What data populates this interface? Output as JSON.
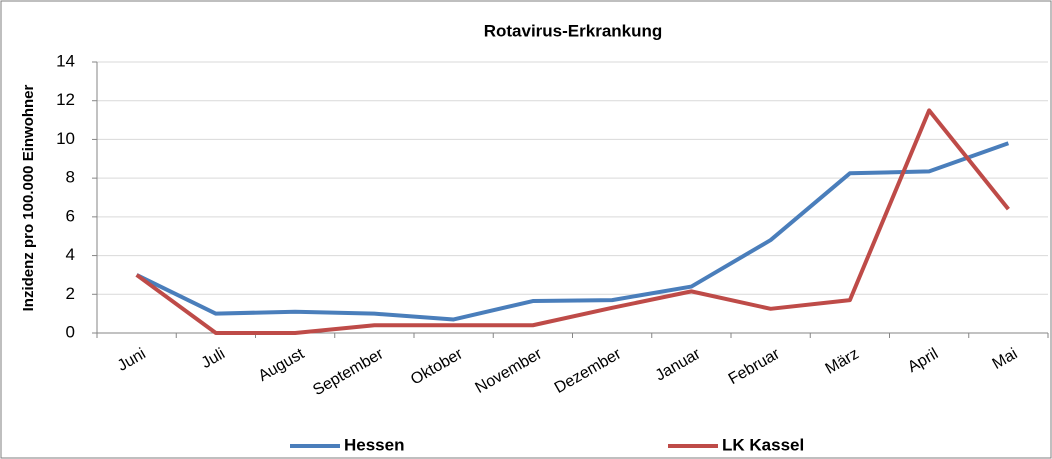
{
  "chart_data": {
    "type": "line",
    "title": "Rotavirus-Erkrankung",
    "y_label": "Inzidenz pro 100.000 Einwohner",
    "categories": [
      "Juni",
      "Juli",
      "August",
      "September",
      "Oktober",
      "November",
      "Dezember",
      "Januar",
      "Februar",
      "März",
      "April",
      "Mai"
    ],
    "series": [
      {
        "name": "Hessen",
        "color": "#4a7ebb",
        "values": [
          3.0,
          1.0,
          1.1,
          1.0,
          0.7,
          1.65,
          1.7,
          2.4,
          4.8,
          8.25,
          8.35,
          9.8
        ]
      },
      {
        "name": "LK Kassel",
        "color": "#be4b48",
        "values": [
          3.0,
          0,
          0,
          0.4,
          0.4,
          0.4,
          1.3,
          2.15,
          1.25,
          1.7,
          11.5,
          6.4
        ]
      }
    ],
    "ylim": [
      0,
      14
    ],
    "yticks": [
      0,
      2,
      4,
      6,
      8,
      10,
      12,
      14
    ],
    "grid": true,
    "legend": "bottom"
  }
}
